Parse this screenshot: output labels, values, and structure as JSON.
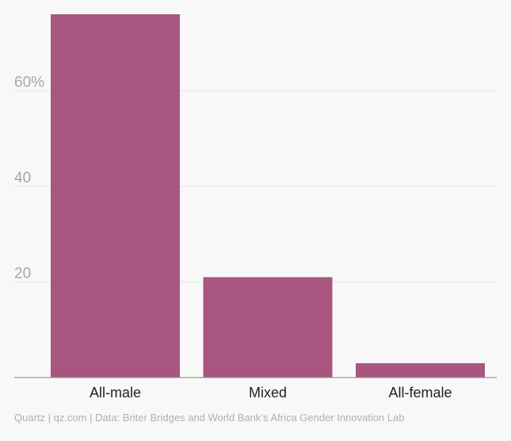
{
  "chart_data": {
    "type": "bar",
    "title": "",
    "xlabel": "",
    "ylabel": "",
    "categories": [
      "All-male",
      "Mixed",
      "All-female"
    ],
    "values": [
      76,
      21,
      3
    ],
    "ylim": [
      0,
      76
    ],
    "yticks": [
      20,
      40,
      60
    ],
    "ytick_labels": [
      "20",
      "40",
      "60%"
    ],
    "bar_color": "#a8557f",
    "grid": true,
    "legend": "none"
  },
  "source": "Quartz | qz.com | Data: Briter Bridges and World Bank’s Africa Gender Innovation Lab"
}
